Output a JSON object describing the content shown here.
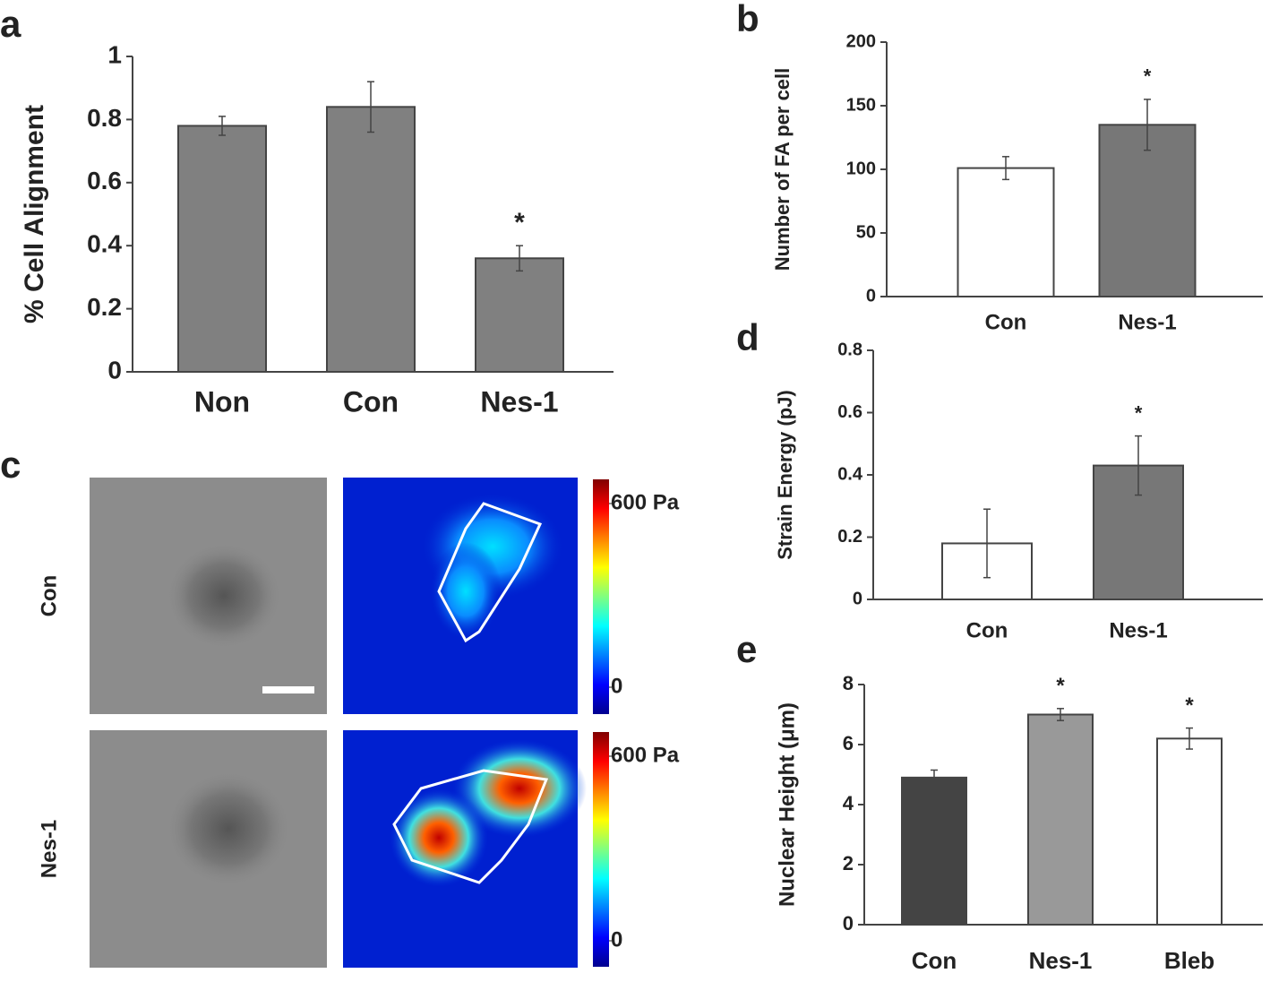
{
  "chart_data": [
    {
      "type": "bar",
      "panel": "a",
      "ylabel": "% Cell Alignment",
      "categories": [
        "Non",
        "Con",
        "Nes-1"
      ],
      "values": [
        0.78,
        0.84,
        0.36
      ],
      "errors": [
        0.03,
        0.08,
        0.04
      ],
      "significance": [
        null,
        null,
        "*"
      ],
      "colors": [
        "#808080",
        "#808080",
        "#808080"
      ],
      "ylim": [
        0,
        1
      ],
      "yticks": [
        0,
        0.2,
        0.4,
        0.6,
        0.8,
        1
      ]
    },
    {
      "type": "bar",
      "panel": "b",
      "ylabel": "Number of FA per cell",
      "categories": [
        "Con",
        "Nes-1"
      ],
      "values": [
        101,
        135
      ],
      "errors": [
        9,
        20
      ],
      "significance": [
        null,
        "*"
      ],
      "colors": [
        "#ffffff",
        "#777777"
      ],
      "ylim": [
        0,
        200
      ],
      "yticks": [
        0,
        50,
        100,
        150,
        200
      ]
    },
    {
      "type": "image",
      "panel": "c",
      "row_labels": [
        "Con",
        "Nes-1"
      ],
      "colorbar": {
        "lim": [
          0,
          600
        ],
        "ticks": [
          0,
          {
            "value": 600,
            "label": "600 Pa"
          }
        ]
      }
    },
    {
      "type": "bar",
      "panel": "d",
      "ylabel": "Strain Energy (pJ)",
      "categories": [
        "Con",
        "Nes-1"
      ],
      "values": [
        0.18,
        0.43
      ],
      "errors": [
        0.11,
        0.095
      ],
      "significance": [
        null,
        "*"
      ],
      "colors": [
        "#ffffff",
        "#777777"
      ],
      "ylim": [
        0,
        0.8
      ],
      "yticks": [
        0,
        0.2,
        0.4,
        0.6,
        0.8
      ]
    },
    {
      "type": "bar",
      "panel": "e",
      "ylabel": "Nuclear Height (μm)",
      "categories": [
        "Con",
        "Nes-1",
        "Bleb"
      ],
      "values": [
        4.9,
        7.0,
        6.2
      ],
      "errors": [
        0.25,
        0.2,
        0.35
      ],
      "significance": [
        null,
        "*",
        "*"
      ],
      "colors": [
        "#444444",
        "#999999",
        "#ffffff"
      ],
      "ylim": [
        0,
        8
      ],
      "yticks": [
        0,
        2,
        4,
        6,
        8
      ]
    }
  ]
}
